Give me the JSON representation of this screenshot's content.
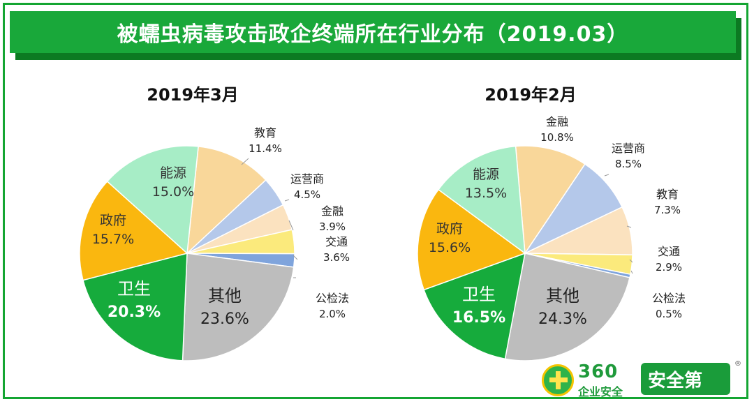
{
  "banner": {
    "title": "被蠕虫病毒攻击政企终端所在行业分布（2019.03）"
  },
  "chart_data": [
    {
      "type": "pie",
      "title": "2019年3月",
      "slices": [
        {
          "label": "教育",
          "value": 11.4,
          "value_label": "11.4%",
          "color": "#f9d79a"
        },
        {
          "label": "运营商",
          "value": 4.5,
          "value_label": "4.5%",
          "color": "#b4c8ea"
        },
        {
          "label": "金融",
          "value": 3.9,
          "value_label": "3.9%",
          "color": "#fbe2bf"
        },
        {
          "label": "交通",
          "value": 3.6,
          "value_label": "3.6%",
          "color": "#fbea7c"
        },
        {
          "label": "公检法",
          "value": 2.0,
          "value_label": "2.0%",
          "color": "#7fa4dc"
        },
        {
          "label": "其他",
          "value": 23.6,
          "value_label": "23.6%",
          "color": "#bdbdbd"
        },
        {
          "label": "卫生",
          "value": 20.3,
          "value_label": "20.3%",
          "color": "#16ab3c"
        },
        {
          "label": "政府",
          "value": 15.7,
          "value_label": "15.7%",
          "color": "#fab70f"
        },
        {
          "label": "能源",
          "value": 15.0,
          "value_label": "15.0%",
          "color": "#a7edc6"
        }
      ]
    },
    {
      "type": "pie",
      "title": "2019年2月",
      "slices": [
        {
          "label": "金融",
          "value": 10.8,
          "value_label": "10.8%",
          "color": "#f9d79a"
        },
        {
          "label": "运营商",
          "value": 8.5,
          "value_label": "8.5%",
          "color": "#b4c8ea"
        },
        {
          "label": "教育",
          "value": 7.3,
          "value_label": "7.3%",
          "color": "#fbe2bf"
        },
        {
          "label": "交通",
          "value": 2.9,
          "value_label": "2.9%",
          "color": "#fbea7c"
        },
        {
          "label": "公检法",
          "value": 0.5,
          "value_label": "0.5%",
          "color": "#7fa4dc"
        },
        {
          "label": "其他",
          "value": 24.3,
          "value_label": "24.3%",
          "color": "#bdbdbd"
        },
        {
          "label": "卫生",
          "value": 16.5,
          "value_label": "16.5%",
          "color": "#16ab3c"
        },
        {
          "label": "政府",
          "value": 15.6,
          "value_label": "15.6%",
          "color": "#fab70f"
        },
        {
          "label": "能源",
          "value": 13.5,
          "value_label": "13.5%",
          "color": "#a7edc6"
        }
      ]
    }
  ],
  "brand": {
    "number": "360",
    "subtitle": "企业安全",
    "box": "安全第",
    "registered": "®"
  }
}
